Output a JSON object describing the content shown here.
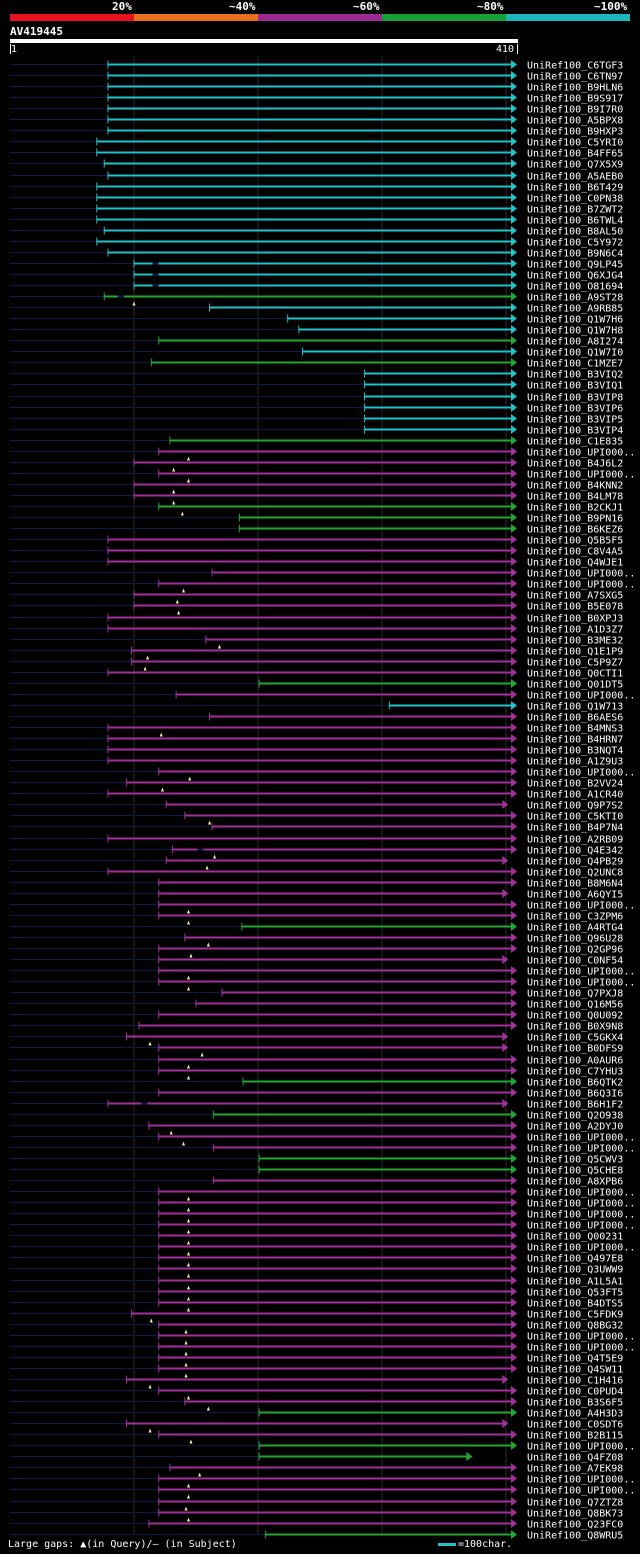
{
  "scale": {
    "labels": [
      "20%",
      "~40%",
      "~60%",
      "~80%",
      "~100%"
    ],
    "colors": [
      "#e8121f",
      "#ec6f1e",
      "#9b2a93",
      "#15a038",
      "#1cb7bd"
    ]
  },
  "query": {
    "id": "AV419445",
    "start": "1",
    "end": "410",
    "length": 410
  },
  "identity_colors": {
    "high": "#1fc2c6",
    "mid": "#1fa832",
    "low": "#a3309a"
  },
  "hits": [
    {
      "name": "UniRef100_C6TGF3",
      "s": 80,
      "e": 410,
      "c": "high",
      "a": "tri"
    },
    {
      "name": "UniRef100_C6TN97",
      "s": 80,
      "e": 410,
      "c": "high",
      "a": "tri"
    },
    {
      "name": "UniRef100_B9HLN6",
      "s": 80,
      "e": 410,
      "c": "high",
      "a": "tri"
    },
    {
      "name": "UniRef100_B9S917",
      "s": 80,
      "e": 410,
      "c": "high",
      "a": "tri"
    },
    {
      "name": "UniRef100_B9I7R0",
      "s": 80,
      "e": 410,
      "c": "high",
      "a": "tri"
    },
    {
      "name": "UniRef100_A5BPX8",
      "s": 80,
      "e": 410,
      "c": "high",
      "a": "tri"
    },
    {
      "name": "UniRef100_B9HXP3",
      "s": 80,
      "e": 410,
      "c": "high",
      "a": "tri"
    },
    {
      "name": "UniRef100_C5YRI0",
      "s": 71,
      "e": 410,
      "c": "high",
      "a": "tri"
    },
    {
      "name": "UniRef100_B4FF65",
      "s": 71,
      "e": 410,
      "c": "high",
      "a": "tri"
    },
    {
      "name": "UniRef100_Q7X5X9",
      "s": 77,
      "e": 410,
      "c": "high",
      "a": "tri"
    },
    {
      "name": "UniRef100_A5AEB0",
      "s": 80,
      "e": 410,
      "c": "high",
      "a": "tri"
    },
    {
      "name": "UniRef100_B6T429",
      "s": 71,
      "e": 410,
      "c": "high",
      "a": "tri"
    },
    {
      "name": "UniRef100_C0PN38",
      "s": 71,
      "e": 410,
      "c": "high",
      "a": "tri"
    },
    {
      "name": "UniRef100_B7ZWT2",
      "s": 71,
      "e": 410,
      "c": "high",
      "a": "tri"
    },
    {
      "name": "UniRef100_B6TWL4",
      "s": 71,
      "e": 410,
      "c": "high",
      "a": "tri"
    },
    {
      "name": "UniRef100_B8AL50",
      "s": 77,
      "e": 410,
      "c": "high",
      "a": "tri"
    },
    {
      "name": "UniRef100_C5Y972",
      "s": 71,
      "e": 410,
      "c": "high",
      "a": "tri"
    },
    {
      "name": "UniRef100_B9N6C4",
      "s": 80,
      "e": 410,
      "c": "high",
      "a": "tri"
    },
    {
      "name": "UniRef100_Q9LP45",
      "s": 101,
      "e": 410,
      "c": "high",
      "a": "tri",
      "g": 116
    },
    {
      "name": "UniRef100_Q6XJG4",
      "s": 101,
      "e": 410,
      "c": "high",
      "a": "tri",
      "g": 116
    },
    {
      "name": "UniRef100_O81694",
      "s": 101,
      "e": 410,
      "c": "high",
      "a": "tri",
      "g": 116
    },
    {
      "name": "UniRef100_A9ST28",
      "s": 77,
      "e": 410,
      "c": "mid",
      "a": "tri",
      "g": 88,
      "m": 101
    },
    {
      "name": "UniRef100_A9RB85",
      "s": 162,
      "e": 410,
      "c": "high",
      "a": "tri"
    },
    {
      "name": "UniRef100_Q1W7H6",
      "s": 225,
      "e": 410,
      "c": "high",
      "a": "tri"
    },
    {
      "name": "UniRef100_Q1W7H8",
      "s": 234,
      "e": 410,
      "c": "high",
      "a": "tri"
    },
    {
      "name": "UniRef100_A8I274",
      "s": 121,
      "e": 410,
      "c": "mid",
      "a": "tri"
    },
    {
      "name": "UniRef100_Q1W7I0",
      "s": 237,
      "e": 410,
      "c": "high",
      "a": "tri"
    },
    {
      "name": "UniRef100_C1MZE7",
      "s": 115,
      "e": 410,
      "c": "mid",
      "a": "tri"
    },
    {
      "name": "UniRef100_B3VIQ2",
      "s": 287,
      "e": 410,
      "c": "high",
      "a": "tri"
    },
    {
      "name": "UniRef100_B3VIQ1",
      "s": 287,
      "e": 410,
      "c": "high",
      "a": "tri"
    },
    {
      "name": "UniRef100_B3VIP8",
      "s": 287,
      "e": 410,
      "c": "high",
      "a": "tri"
    },
    {
      "name": "UniRef100_B3VIP6",
      "s": 287,
      "e": 410,
      "c": "high",
      "a": "tri"
    },
    {
      "name": "UniRef100_B3VIP5",
      "s": 287,
      "e": 410,
      "c": "high",
      "a": "tri"
    },
    {
      "name": "UniRef100_B3VIP4",
      "s": 287,
      "e": 410,
      "c": "high",
      "a": "tri"
    },
    {
      "name": "UniRef100_C1E835",
      "s": 130,
      "e": 410,
      "c": "mid",
      "a": "tri"
    },
    {
      "name": "UniRef100_UPI000..",
      "s": 121,
      "e": 410,
      "c": "low",
      "a": "tri",
      "m": 145
    },
    {
      "name": "UniRef100_B4J6L2",
      "s": 101,
      "e": 410,
      "c": "low",
      "a": "tri",
      "m": 133
    },
    {
      "name": "UniRef100_UPI000..",
      "s": 121,
      "e": 410,
      "c": "low",
      "a": "tri",
      "m": 145
    },
    {
      "name": "UniRef100_B4KNN2",
      "s": 101,
      "e": 410,
      "c": "low",
      "a": "tri",
      "m": 133
    },
    {
      "name": "UniRef100_B4LM78",
      "s": 101,
      "e": 410,
      "c": "low",
      "a": "tri",
      "m": 133
    },
    {
      "name": "UniRef100_B2CKJ1",
      "s": 121,
      "e": 410,
      "c": "mid",
      "a": "tri",
      "m": 140
    },
    {
      "name": "UniRef100_B9PN16",
      "s": 186,
      "e": 410,
      "c": "mid",
      "a": "tri"
    },
    {
      "name": "UniRef100_B6KEZ6",
      "s": 186,
      "e": 410,
      "c": "mid",
      "a": "tri"
    },
    {
      "name": "UniRef100_Q5B5F5",
      "s": 80,
      "e": 410,
      "c": "low",
      "a": "tri"
    },
    {
      "name": "UniRef100_C8V4A5",
      "s": 80,
      "e": 410,
      "c": "low",
      "a": "tri"
    },
    {
      "name": "UniRef100_Q4WJE1",
      "s": 80,
      "e": 410,
      "c": "low",
      "a": "tri"
    },
    {
      "name": "UniRef100_UPI000..",
      "s": 164,
      "e": 410,
      "c": "low",
      "a": "tri"
    },
    {
      "name": "UniRef100_UPI000..",
      "s": 121,
      "e": 410,
      "c": "low",
      "a": "tri",
      "m": 141
    },
    {
      "name": "UniRef100_A7SXG5",
      "s": 101,
      "e": 410,
      "c": "low",
      "a": "tri",
      "m": 136
    },
    {
      "name": "UniRef100_B5E078",
      "s": 101,
      "e": 410,
      "c": "low",
      "a": "tri",
      "m": 137
    },
    {
      "name": "UniRef100_B0XPJ3",
      "s": 80,
      "e": 410,
      "c": "low",
      "a": "tri"
    },
    {
      "name": "UniRef100_A1D3Z7",
      "s": 80,
      "e": 410,
      "c": "low",
      "a": "tri"
    },
    {
      "name": "UniRef100_B3ME32",
      "s": 159,
      "e": 410,
      "c": "low",
      "a": "tri",
      "m": 170
    },
    {
      "name": "UniRef100_Q1E1P9",
      "s": 99,
      "e": 410,
      "c": "low",
      "a": "tri",
      "m": 112
    },
    {
      "name": "UniRef100_C5P9Z7",
      "s": 99,
      "e": 410,
      "c": "low",
      "a": "tri",
      "m": 110
    },
    {
      "name": "UniRef100_Q0CTI1",
      "s": 80,
      "e": 410,
      "c": "low",
      "a": "tri"
    },
    {
      "name": "UniRef100_Q01DT5",
      "s": 202,
      "e": 410,
      "c": "mid",
      "a": "tri"
    },
    {
      "name": "UniRef100_UPI000..",
      "s": 135,
      "e": 410,
      "c": "low",
      "a": "tri"
    },
    {
      "name": "UniRef100_Q1W713",
      "s": 307,
      "e": 410,
      "c": "high",
      "a": "tri"
    },
    {
      "name": "UniRef100_B6AES6",
      "s": 162,
      "e": 410,
      "c": "low",
      "a": "tri"
    },
    {
      "name": "UniRef100_B4MNS3",
      "s": 80,
      "e": 410,
      "c": "low",
      "a": "tri",
      "m": 123
    },
    {
      "name": "UniRef100_B4HRN7",
      "s": 80,
      "e": 410,
      "c": "low",
      "a": "tri"
    },
    {
      "name": "UniRef100_B3NQT4",
      "s": 80,
      "e": 410,
      "c": "low",
      "a": "tri"
    },
    {
      "name": "UniRef100_A1Z9U3",
      "s": 80,
      "e": 410,
      "c": "low",
      "a": "tri"
    },
    {
      "name": "UniRef100_UPI000..",
      "s": 121,
      "e": 410,
      "c": "low",
      "a": "tri",
      "m": 146
    },
    {
      "name": "UniRef100_B2VV24",
      "s": 95,
      "e": 410,
      "c": "low",
      "a": "tri",
      "m": 124
    },
    {
      "name": "UniRef100_A1CR40",
      "s": 80,
      "e": 410,
      "c": "low",
      "a": "tri"
    },
    {
      "name": "UniRef100_Q9P7S2",
      "s": 127,
      "e": 403,
      "c": "low",
      "a": "tri"
    },
    {
      "name": "UniRef100_C5KTI0",
      "s": 142,
      "e": 410,
      "c": "low",
      "a": "tri",
      "m": 162
    },
    {
      "name": "UniRef100_B4P7N4",
      "s": 164,
      "e": 410,
      "c": "low",
      "a": "tri"
    },
    {
      "name": "UniRef100_A2RB09",
      "s": 80,
      "e": 410,
      "c": "low",
      "a": "tri"
    },
    {
      "name": "UniRef100_Q4E342",
      "s": 132,
      "e": 410,
      "c": "low",
      "a": "tri",
      "g": 152,
      "m": 166
    },
    {
      "name": "UniRef100_Q4PB29",
      "s": 127,
      "e": 403,
      "c": "low",
      "a": "tri",
      "m": 160
    },
    {
      "name": "UniRef100_Q2UNC8",
      "s": 80,
      "e": 410,
      "c": "low",
      "a": "tri"
    },
    {
      "name": "UniRef100_B8M6N4",
      "s": 121,
      "e": 410,
      "c": "low",
      "a": "tri"
    },
    {
      "name": "UniRef100_A6QYI5",
      "s": 121,
      "e": 403,
      "c": "low",
      "a": "tri"
    },
    {
      "name": "UniRef100_UPI000..",
      "s": 121,
      "e": 410,
      "c": "low",
      "a": "tri",
      "m": 145
    },
    {
      "name": "UniRef100_C3ZPM6",
      "s": 121,
      "e": 410,
      "c": "low",
      "a": "tri",
      "m": 145
    },
    {
      "name": "UniRef100_A4RTG4",
      "s": 188,
      "e": 410,
      "c": "mid",
      "a": "tri"
    },
    {
      "name": "UniRef100_Q96U28",
      "s": 142,
      "e": 410,
      "c": "low",
      "a": "tri",
      "m": 161
    },
    {
      "name": "UniRef100_Q2GP96",
      "s": 121,
      "e": 410,
      "c": "low",
      "a": "tri",
      "m": 147
    },
    {
      "name": "UniRef100_C0NF54",
      "s": 121,
      "e": 403,
      "c": "low",
      "a": "tri"
    },
    {
      "name": "UniRef100_UPI000..",
      "s": 121,
      "e": 410,
      "c": "low",
      "a": "tri",
      "m": 145
    },
    {
      "name": "UniRef100_UPI000..",
      "s": 121,
      "e": 410,
      "c": "low",
      "a": "tri",
      "m": 145
    },
    {
      "name": "UniRef100_Q7PXJ8",
      "s": 172,
      "e": 410,
      "c": "low",
      "a": "tri"
    },
    {
      "name": "UniRef100_Q16M56",
      "s": 151,
      "e": 410,
      "c": "low",
      "a": "tri"
    },
    {
      "name": "UniRef100_Q0U092",
      "s": 121,
      "e": 410,
      "c": "low",
      "a": "tri"
    },
    {
      "name": "UniRef100_B0X9N8",
      "s": 105,
      "e": 410,
      "c": "low",
      "a": "tri"
    },
    {
      "name": "UniRef100_C5GKX4",
      "s": 95,
      "e": 403,
      "c": "low",
      "a": "tri",
      "m": 114
    },
    {
      "name": "UniRef100_B0DFS9",
      "s": 121,
      "e": 403,
      "c": "low",
      "a": "tri",
      "m": 156
    },
    {
      "name": "UniRef100_A0AUR6",
      "s": 121,
      "e": 410,
      "c": "low",
      "a": "tri",
      "m": 145
    },
    {
      "name": "UniRef100_C7YHU3",
      "s": 121,
      "e": 410,
      "c": "low",
      "a": "tri",
      "m": 145
    },
    {
      "name": "UniRef100_B6QTK2",
      "s": 189,
      "e": 410,
      "c": "mid",
      "a": "tri"
    },
    {
      "name": "UniRef100_B6Q3I6",
      "s": 121,
      "e": 410,
      "c": "low",
      "a": "tri"
    },
    {
      "name": "UniRef100_B6H1F2",
      "s": 80,
      "e": 403,
      "c": "low",
      "a": "tri",
      "g": 107
    },
    {
      "name": "UniRef100_Q2O938",
      "s": 165,
      "e": 410,
      "c": "mid",
      "a": "tri"
    },
    {
      "name": "UniRef100_A2DYJ0",
      "s": 113,
      "e": 410,
      "c": "low",
      "a": "tri",
      "m": 131
    },
    {
      "name": "UniRef100_UPI000..",
      "s": 121,
      "e": 410,
      "c": "low",
      "a": "tri",
      "m": 141
    },
    {
      "name": "UniRef100_UPI000..",
      "s": 165,
      "e": 410,
      "c": "low",
      "a": "tri"
    },
    {
      "name": "UniRef100_Q5CWV3",
      "s": 202,
      "e": 410,
      "c": "mid",
      "a": "tri"
    },
    {
      "name": "UniRef100_Q5CHE8",
      "s": 202,
      "e": 410,
      "c": "mid",
      "a": "tri"
    },
    {
      "name": "UniRef100_A8XPB6",
      "s": 165,
      "e": 410,
      "c": "low",
      "a": "tri"
    },
    {
      "name": "UniRef100_UPI000..",
      "s": 121,
      "e": 410,
      "c": "low",
      "a": "tri",
      "m": 145
    },
    {
      "name": "UniRef100_UPI000..",
      "s": 121,
      "e": 410,
      "c": "low",
      "a": "tri",
      "m": 145
    },
    {
      "name": "UniRef100_UPI000..",
      "s": 121,
      "e": 410,
      "c": "low",
      "a": "tri",
      "m": 145
    },
    {
      "name": "UniRef100_UPI000..",
      "s": 121,
      "e": 410,
      "c": "low",
      "a": "tri",
      "m": 145
    },
    {
      "name": "UniRef100_Q00231",
      "s": 121,
      "e": 410,
      "c": "low",
      "a": "tri",
      "m": 145
    },
    {
      "name": "UniRef100_UPI000..",
      "s": 121,
      "e": 410,
      "c": "low",
      "a": "tri",
      "m": 145
    },
    {
      "name": "UniRef100_Q497E8",
      "s": 121,
      "e": 410,
      "c": "low",
      "a": "tri",
      "m": 145
    },
    {
      "name": "UniRef100_Q3UWW9",
      "s": 121,
      "e": 410,
      "c": "low",
      "a": "tri",
      "m": 145
    },
    {
      "name": "UniRef100_A1L5A1",
      "s": 121,
      "e": 410,
      "c": "low",
      "a": "tri",
      "m": 145
    },
    {
      "name": "UniRef100_Q53FT5",
      "s": 121,
      "e": 410,
      "c": "low",
      "a": "tri",
      "m": 145
    },
    {
      "name": "UniRef100_B4DTS5",
      "s": 121,
      "e": 410,
      "c": "low",
      "a": "tri",
      "m": 145
    },
    {
      "name": "UniRef100_C5FDK9",
      "s": 99,
      "e": 410,
      "c": "low",
      "a": "tri",
      "m": 115
    },
    {
      "name": "UniRef100_Q8BG32",
      "s": 121,
      "e": 410,
      "c": "low",
      "a": "tri",
      "m": 143
    },
    {
      "name": "UniRef100_UPI000..",
      "s": 121,
      "e": 410,
      "c": "low",
      "a": "tri",
      "m": 143
    },
    {
      "name": "UniRef100_UPI000..",
      "s": 121,
      "e": 410,
      "c": "low",
      "a": "tri",
      "m": 143
    },
    {
      "name": "UniRef100_Q4T5E9",
      "s": 121,
      "e": 410,
      "c": "low",
      "a": "tri",
      "m": 143
    },
    {
      "name": "UniRef100_Q4SW11",
      "s": 121,
      "e": 410,
      "c": "low",
      "a": "tri",
      "m": 143
    },
    {
      "name": "UniRef100_C1H416",
      "s": 95,
      "e": 403,
      "c": "low",
      "a": "tri",
      "m": 114
    },
    {
      "name": "UniRef100_C0PUD4",
      "s": 121,
      "e": 410,
      "c": "low",
      "a": "tri",
      "m": 145
    },
    {
      "name": "UniRef100_B3S6F5",
      "s": 142,
      "e": 410,
      "c": "low",
      "a": "tri",
      "m": 161
    },
    {
      "name": "UniRef100_A4H3D3",
      "s": 202,
      "e": 410,
      "c": "mid",
      "a": "tri"
    },
    {
      "name": "UniRef100_C0SDT6",
      "s": 95,
      "e": 403,
      "c": "low",
      "a": "tri",
      "m": 114
    },
    {
      "name": "UniRef100_B2B115",
      "s": 121,
      "e": 410,
      "c": "low",
      "a": "tri",
      "m": 147
    },
    {
      "name": "UniRef100_UPI000..",
      "s": 202,
      "e": 410,
      "c": "mid",
      "a": "tri"
    },
    {
      "name": "UniRef100_Q4FZ08",
      "s": 202,
      "e": 374,
      "c": "mid",
      "a": "tri"
    },
    {
      "name": "UniRef100_A7EK98",
      "s": 130,
      "e": 410,
      "c": "low",
      "a": "tri",
      "m": 154
    },
    {
      "name": "UniRef100_UPI000..",
      "s": 121,
      "e": 410,
      "c": "low",
      "a": "tri",
      "m": 145
    },
    {
      "name": "UniRef100_UPI000..",
      "s": 121,
      "e": 410,
      "c": "low",
      "a": "tri",
      "m": 145
    },
    {
      "name": "UniRef100_Q7ZTZ8",
      "s": 121,
      "e": 410,
      "c": "low",
      "a": "tri",
      "m": 143
    },
    {
      "name": "UniRef100_Q8BK73",
      "s": 121,
      "e": 410,
      "c": "low",
      "a": "tri",
      "m": 145
    },
    {
      "name": "UniRef100_Q23FC0",
      "s": 113,
      "e": 410,
      "c": "low",
      "a": "tri"
    },
    {
      "name": "UniRef100_Q8WRU5",
      "s": 207,
      "e": 410,
      "c": "mid",
      "a": "tri"
    }
  ],
  "footer": {
    "legend": "Large gaps: ▲(in Query)/— (in Subject)",
    "scale_note": "=100char."
  }
}
